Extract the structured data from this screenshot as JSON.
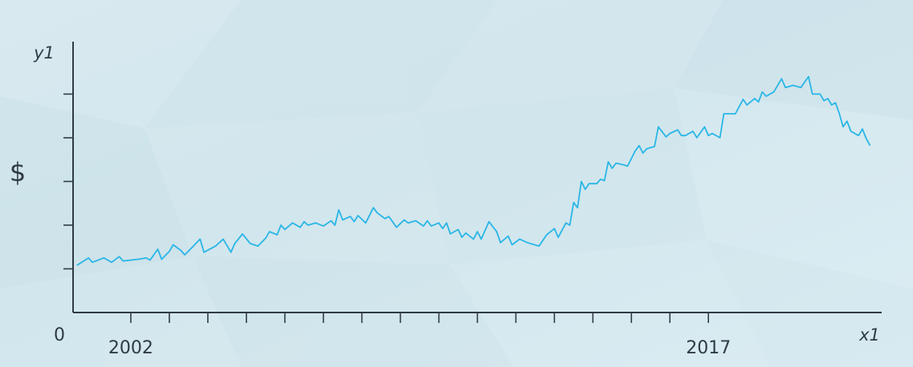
{
  "chart_data": {
    "type": "line",
    "ylabel_top": "y1",
    "ylabel_side": "$",
    "xlabel": "x1",
    "origin_label": "0",
    "x_tick_labels": [
      {
        "x": 2002,
        "label": "2002"
      },
      {
        "x": 2017,
        "label": "2017"
      }
    ],
    "xlim": [
      2000.5,
      2021.5
    ],
    "x_tick_values": [
      2002,
      2003,
      2004,
      2005,
      2006,
      2007,
      2008,
      2009,
      2010,
      2011,
      2012,
      2013,
      2014,
      2015,
      2016,
      2017
    ],
    "ylim": [
      0,
      6.2
    ],
    "y_tick_values": [
      1,
      2,
      3,
      4,
      5
    ],
    "grid": false,
    "legend": "none",
    "series": [
      {
        "color": "#29b6e6",
        "points": [
          [
            2000.6,
            1.08
          ],
          [
            2000.9,
            1.25
          ],
          [
            2001.0,
            1.15
          ],
          [
            2001.3,
            1.25
          ],
          [
            2001.5,
            1.15
          ],
          [
            2001.7,
            1.28
          ],
          [
            2001.8,
            1.18
          ],
          [
            2002.2,
            1.22
          ],
          [
            2002.4,
            1.25
          ],
          [
            2002.5,
            1.2
          ],
          [
            2002.7,
            1.45
          ],
          [
            2002.8,
            1.22
          ],
          [
            2003.0,
            1.4
          ],
          [
            2003.1,
            1.55
          ],
          [
            2003.3,
            1.42
          ],
          [
            2003.4,
            1.32
          ],
          [
            2003.6,
            1.5
          ],
          [
            2003.8,
            1.68
          ],
          [
            2003.9,
            1.38
          ],
          [
            2004.2,
            1.52
          ],
          [
            2004.4,
            1.68
          ],
          [
            2004.6,
            1.38
          ],
          [
            2004.7,
            1.58
          ],
          [
            2004.9,
            1.8
          ],
          [
            2005.1,
            1.58
          ],
          [
            2005.3,
            1.52
          ],
          [
            2005.5,
            1.7
          ],
          [
            2005.6,
            1.85
          ],
          [
            2005.8,
            1.78
          ],
          [
            2005.9,
            2.0
          ],
          [
            2006.0,
            1.9
          ],
          [
            2006.2,
            2.05
          ],
          [
            2006.4,
            1.95
          ],
          [
            2006.5,
            2.08
          ],
          [
            2006.6,
            2.0
          ],
          [
            2006.8,
            2.05
          ],
          [
            2007.0,
            1.98
          ],
          [
            2007.2,
            2.1
          ],
          [
            2007.3,
            2.0
          ],
          [
            2007.4,
            2.35
          ],
          [
            2007.5,
            2.12
          ],
          [
            2007.7,
            2.2
          ],
          [
            2007.8,
            2.08
          ],
          [
            2007.9,
            2.22
          ],
          [
            2008.1,
            2.05
          ],
          [
            2008.3,
            2.4
          ],
          [
            2008.4,
            2.28
          ],
          [
            2008.6,
            2.15
          ],
          [
            2008.7,
            2.2
          ],
          [
            2008.9,
            1.95
          ],
          [
            2009.1,
            2.12
          ],
          [
            2009.2,
            2.05
          ],
          [
            2009.4,
            2.1
          ],
          [
            2009.6,
            1.98
          ],
          [
            2009.7,
            2.1
          ],
          [
            2009.8,
            1.98
          ],
          [
            2010.0,
            2.05
          ],
          [
            2010.1,
            1.92
          ],
          [
            2010.2,
            2.05
          ],
          [
            2010.3,
            1.8
          ],
          [
            2010.5,
            1.9
          ],
          [
            2010.6,
            1.72
          ],
          [
            2010.7,
            1.82
          ],
          [
            2010.9,
            1.68
          ],
          [
            2011.0,
            1.85
          ],
          [
            2011.1,
            1.68
          ],
          [
            2011.3,
            2.08
          ],
          [
            2011.5,
            1.85
          ],
          [
            2011.6,
            1.6
          ],
          [
            2011.8,
            1.75
          ],
          [
            2011.9,
            1.55
          ],
          [
            2012.1,
            1.68
          ],
          [
            2012.3,
            1.6
          ],
          [
            2012.6,
            1.52
          ],
          [
            2012.8,
            1.78
          ],
          [
            2013.0,
            1.92
          ],
          [
            2013.1,
            1.72
          ],
          [
            2013.3,
            2.05
          ],
          [
            2013.4,
            2.0
          ],
          [
            2013.5,
            2.52
          ],
          [
            2013.6,
            2.4
          ],
          [
            2013.7,
            3.0
          ],
          [
            2013.8,
            2.82
          ],
          [
            2013.9,
            2.95
          ],
          [
            2014.1,
            2.95
          ],
          [
            2014.2,
            3.05
          ],
          [
            2014.3,
            3.02
          ],
          [
            2014.4,
            3.45
          ],
          [
            2014.5,
            3.3
          ],
          [
            2014.6,
            3.42
          ],
          [
            2014.8,
            3.38
          ],
          [
            2014.9,
            3.35
          ],
          [
            2015.1,
            3.7
          ],
          [
            2015.2,
            3.82
          ],
          [
            2015.3,
            3.65
          ],
          [
            2015.4,
            3.75
          ],
          [
            2015.6,
            3.8
          ],
          [
            2015.7,
            4.25
          ],
          [
            2015.9,
            4.02
          ],
          [
            2016.0,
            4.1
          ],
          [
            2016.2,
            4.18
          ],
          [
            2016.3,
            4.05
          ],
          [
            2016.4,
            4.05
          ],
          [
            2016.6,
            4.15
          ],
          [
            2016.7,
            4.0
          ],
          [
            2016.9,
            4.25
          ],
          [
            2017.0,
            4.05
          ],
          [
            2017.1,
            4.1
          ],
          [
            2017.3,
            4.0
          ],
          [
            2017.4,
            4.55
          ],
          [
            2017.7,
            4.55
          ],
          [
            2017.9,
            4.88
          ],
          [
            2018.0,
            4.75
          ],
          [
            2018.2,
            4.9
          ],
          [
            2018.3,
            4.82
          ],
          [
            2018.4,
            5.05
          ],
          [
            2018.5,
            4.95
          ],
          [
            2018.7,
            5.05
          ],
          [
            2018.9,
            5.35
          ],
          [
            2019.0,
            5.15
          ],
          [
            2019.2,
            5.2
          ],
          [
            2019.4,
            5.15
          ],
          [
            2019.6,
            5.4
          ],
          [
            2019.7,
            5.0
          ],
          [
            2019.9,
            5.0
          ],
          [
            2020.0,
            4.85
          ],
          [
            2020.1,
            4.9
          ],
          [
            2020.2,
            4.75
          ],
          [
            2020.3,
            4.8
          ],
          [
            2020.4,
            4.55
          ],
          [
            2020.5,
            4.25
          ],
          [
            2020.6,
            4.38
          ],
          [
            2020.7,
            4.15
          ],
          [
            2020.9,
            4.05
          ],
          [
            2021.0,
            4.2
          ],
          [
            2021.1,
            3.98
          ],
          [
            2021.2,
            3.82
          ]
        ]
      }
    ]
  }
}
